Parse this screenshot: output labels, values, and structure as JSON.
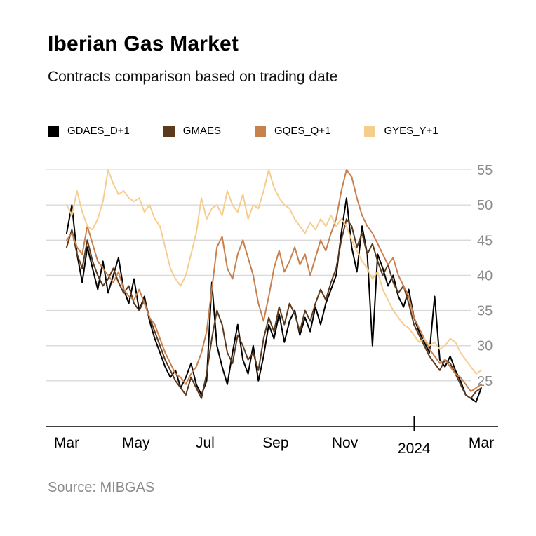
{
  "chart_data": {
    "type": "line",
    "title": "Iberian Gas Market",
    "subtitle": "Contracts comparison based on trading date",
    "source": "Source: MIBGAS",
    "legend_position": "top",
    "grid": {
      "horizontal": true,
      "color": "#d9d9d9"
    },
    "x_axis": {
      "start": "Mar 2023",
      "end": "Mar 2024",
      "ticks": [
        {
          "t": 0.0,
          "label": "Mar",
          "major": false
        },
        {
          "t": 0.167,
          "label": "May",
          "major": false
        },
        {
          "t": 0.334,
          "label": "Jul",
          "major": false
        },
        {
          "t": 0.504,
          "label": "Sep",
          "major": false
        },
        {
          "t": 0.671,
          "label": "Nov",
          "major": false
        },
        {
          "t": 0.838,
          "label": "2024",
          "major": true
        },
        {
          "t": 1.0,
          "label": "Mar",
          "major": false
        }
      ]
    },
    "y_axis": {
      "ticks": [
        25,
        30,
        35,
        40,
        45,
        50,
        55
      ],
      "min": 18.5,
      "max": 57,
      "label_color": "#8c8c8c"
    },
    "series": [
      {
        "name": "GDAES_D+1",
        "color": "#000000",
        "values": [
          46,
          50,
          43,
          39,
          44,
          41,
          38,
          42,
          37.5,
          40,
          42.5,
          38,
          36,
          39.5,
          35,
          37,
          33.5,
          31,
          29,
          27,
          25.5,
          26.5,
          24,
          25.5,
          27.5,
          24.5,
          23,
          25,
          39,
          30,
          27,
          24.5,
          29,
          33,
          28,
          26,
          30,
          25,
          28.5,
          33,
          31,
          34.5,
          30.5,
          33.5,
          35,
          31.5,
          34,
          32,
          35.5,
          33,
          36,
          38,
          40,
          46,
          51,
          44,
          40.5,
          47,
          43,
          30,
          43,
          41,
          38.5,
          40,
          37,
          35.5,
          38,
          34,
          32,
          30.5,
          29,
          37,
          28,
          27,
          28.5,
          26.5,
          25,
          23,
          22.5,
          22,
          24
        ]
      },
      {
        "name": "GMAES",
        "color": "#5b3a1e",
        "values": [
          44,
          46.5,
          43,
          41,
          45,
          42,
          40,
          38.5,
          39.5,
          41,
          39,
          37.5,
          38.5,
          36,
          35,
          36.5,
          34,
          32,
          30,
          28,
          26.5,
          25,
          24,
          23,
          25.5,
          24,
          22.5,
          26,
          31,
          35,
          33,
          29,
          27.5,
          31.5,
          30,
          28,
          29,
          26.5,
          31,
          34,
          32,
          35.5,
          33,
          36,
          34.5,
          32,
          35,
          33.5,
          36,
          38,
          36.5,
          39,
          41,
          45,
          48,
          47,
          44,
          46,
          43,
          44.5,
          42,
          40,
          41.5,
          39,
          37.5,
          38.5,
          36,
          33,
          31.5,
          30,
          28.5,
          27.5,
          26.5,
          28,
          27.5,
          26,
          24.5,
          23,
          22.5,
          23.5,
          24
        ]
      },
      {
        "name": "GQES_Q+1",
        "color": "#c8804f",
        "values": [
          45,
          46,
          44,
          43,
          47,
          44.5,
          42,
          41,
          40,
          39,
          40.5,
          38,
          37,
          36.5,
          38,
          36,
          34,
          33,
          31,
          29,
          27.5,
          26,
          25.5,
          24.5,
          26,
          27,
          29,
          32,
          38,
          44,
          45.5,
          41,
          39.5,
          43,
          45,
          42.5,
          40,
          36,
          33.5,
          37,
          41,
          43.5,
          40.5,
          42,
          44,
          41.5,
          43,
          40,
          42.5,
          45,
          43.5,
          46,
          48,
          52,
          55,
          54,
          51,
          48.5,
          47,
          46,
          44.5,
          43,
          41.5,
          42.5,
          40,
          38.5,
          37,
          34,
          32.5,
          31,
          29.5,
          28.5,
          27.5,
          28,
          27,
          26,
          25.5,
          24.5,
          23.5,
          24,
          24.5
        ]
      },
      {
        "name": "GYES_Y+1",
        "color": "#f7cd8e",
        "values": [
          50,
          48.5,
          52,
          49,
          47,
          46.5,
          48,
          50.5,
          55,
          53,
          51.5,
          52,
          51,
          50.5,
          51,
          49,
          50,
          48,
          47,
          44,
          41,
          39.5,
          38.5,
          40,
          43,
          46,
          51,
          48,
          49.5,
          50,
          48.5,
          52,
          50,
          49,
          51.5,
          48,
          50,
          49.5,
          52,
          55,
          52.5,
          51,
          50,
          49.5,
          48,
          47,
          46,
          47.5,
          46.5,
          48,
          47,
          48.5,
          47,
          48,
          47,
          45,
          43.5,
          42,
          41,
          39.5,
          40.5,
          38,
          36.5,
          35,
          34,
          33,
          32.5,
          31.5,
          30.5,
          31,
          30,
          30.5,
          29.5,
          30,
          31,
          30.5,
          29,
          28,
          27,
          26,
          26.5
        ]
      }
    ]
  }
}
